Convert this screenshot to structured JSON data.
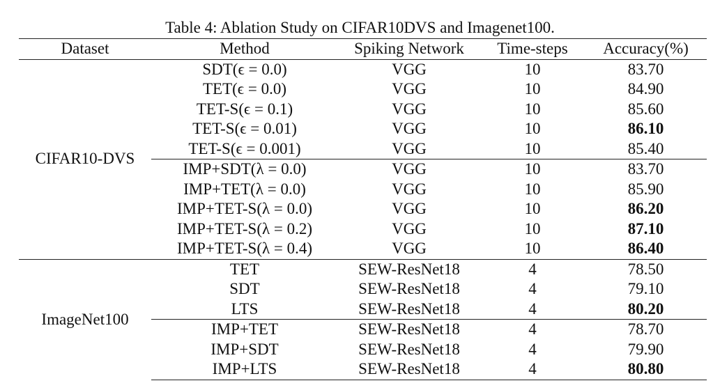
{
  "caption": "Table 4: Ablation Study on CIFAR10DVS and Imagenet100.",
  "columns": [
    "Dataset",
    "Method",
    "Spiking Network",
    "Time-steps",
    "Accuracy(%)"
  ],
  "sections": [
    {
      "dataset": "CIFAR10-DVS",
      "rows": [
        {
          "method": "SDT(ϵ = 0.0)",
          "network": "VGG",
          "timesteps": "10",
          "accuracy": "83.70",
          "bold": false
        },
        {
          "method": "TET(ϵ = 0.0)",
          "network": "VGG",
          "timesteps": "10",
          "accuracy": "84.90",
          "bold": false
        },
        {
          "method": "TET-S(ϵ = 0.1)",
          "network": "VGG",
          "timesteps": "10",
          "accuracy": "85.60",
          "bold": false
        },
        {
          "method": "TET-S(ϵ = 0.01)",
          "network": "VGG",
          "timesteps": "10",
          "accuracy": "86.10",
          "bold": true
        },
        {
          "method": "TET-S(ϵ = 0.001)",
          "network": "VGG",
          "timesteps": "10",
          "accuracy": "85.40",
          "bold": false
        },
        {
          "method": "IMP+SDT(λ = 0.0)",
          "network": "VGG",
          "timesteps": "10",
          "accuracy": "83.70",
          "bold": false
        },
        {
          "method": "IMP+TET(λ = 0.0)",
          "network": "VGG",
          "timesteps": "10",
          "accuracy": "85.90",
          "bold": false
        },
        {
          "method": "IMP+TET-S(λ = 0.0)",
          "network": "VGG",
          "timesteps": "10",
          "accuracy": "86.20",
          "bold": true
        },
        {
          "method": "IMP+TET-S(λ = 0.2)",
          "network": "VGG",
          "timesteps": "10",
          "accuracy": "87.10",
          "bold": true
        },
        {
          "method": "IMP+TET-S(λ = 0.4)",
          "network": "VGG",
          "timesteps": "10",
          "accuracy": "86.40",
          "bold": true
        }
      ]
    },
    {
      "dataset": "ImageNet100",
      "rows": [
        {
          "method": "TET",
          "network": "SEW-ResNet18",
          "timesteps": "4",
          "accuracy": "78.50",
          "bold": false
        },
        {
          "method": "SDT",
          "network": "SEW-ResNet18",
          "timesteps": "4",
          "accuracy": "79.10",
          "bold": false
        },
        {
          "method": "LTS",
          "network": "SEW-ResNet18",
          "timesteps": "4",
          "accuracy": "80.20",
          "bold": true
        },
        {
          "method": "IMP+TET",
          "network": "SEW-ResNet18",
          "timesteps": "4",
          "accuracy": "78.70",
          "bold": false
        },
        {
          "method": "IMP+SDT",
          "network": "SEW-ResNet18",
          "timesteps": "4",
          "accuracy": "79.90",
          "bold": false
        },
        {
          "method": "IMP+LTS",
          "network": "SEW-ResNet18",
          "timesteps": "4",
          "accuracy": "80.80",
          "bold": true
        }
      ]
    }
  ]
}
